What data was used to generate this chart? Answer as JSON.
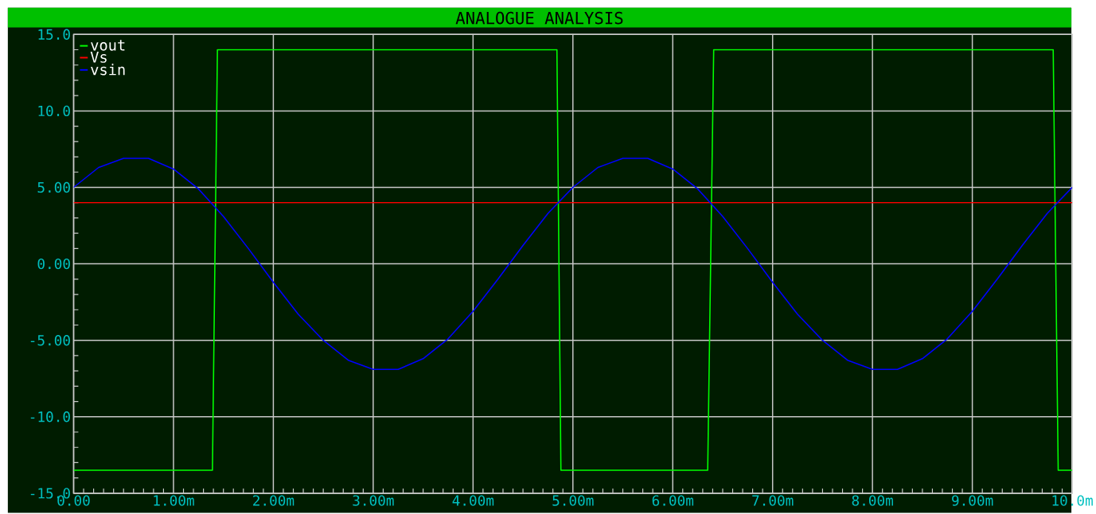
{
  "chart_data": {
    "type": "line",
    "title": "ANALOGUE ANALYSIS",
    "xlim": [
      0,
      10
    ],
    "ylim": [
      -15,
      15
    ],
    "xticks": [
      {
        "value": 0,
        "label": "0.00"
      },
      {
        "value": 1,
        "label": "1.00m"
      },
      {
        "value": 2,
        "label": "2.00m"
      },
      {
        "value": 3,
        "label": "3.00m"
      },
      {
        "value": 4,
        "label": "4.00m"
      },
      {
        "value": 5,
        "label": "5.00m"
      },
      {
        "value": 6,
        "label": "6.00m"
      },
      {
        "value": 7,
        "label": "7.00m"
      },
      {
        "value": 8,
        "label": "8.00m"
      },
      {
        "value": 9,
        "label": "9.00m"
      },
      {
        "value": 10,
        "label": "10.0m"
      }
    ],
    "yticks": [
      {
        "value": -15,
        "label": "-15.0"
      },
      {
        "value": -10,
        "label": "-10.0"
      },
      {
        "value": -5,
        "label": "-5.00"
      },
      {
        "value": 0,
        "label": "0.00"
      },
      {
        "value": 5,
        "label": "5.00"
      },
      {
        "value": 10,
        "label": "10.0"
      },
      {
        "value": 15,
        "label": "15.0"
      }
    ],
    "grid": true,
    "legend": "top left",
    "marker": "none",
    "line_style": "solid",
    "series": [
      {
        "name": "vout",
        "color": "#00ff00",
        "x": [
          0,
          1.39,
          1.44,
          4.84,
          4.88,
          6.35,
          6.41,
          9.81,
          9.86,
          10
        ],
        "values": [
          -13.5,
          -13.5,
          14.0,
          14.0,
          -13.5,
          -13.5,
          14.0,
          14.0,
          -13.5,
          -13.5
        ]
      },
      {
        "name": "Vs",
        "color": "#ff0000",
        "x": [
          0,
          10
        ],
        "values": [
          4.0,
          4.0
        ]
      },
      {
        "name": "vsin",
        "color": "#0000ff",
        "x": [
          0,
          0.25,
          0.5,
          0.75,
          1,
          1.25,
          1.5,
          1.75,
          2,
          2.25,
          2.5,
          2.75,
          3,
          3.25,
          3.5,
          3.75,
          4,
          4.25,
          4.5,
          4.75,
          5,
          5.25,
          5.5,
          5.75,
          6,
          6.25,
          6.5,
          6.75,
          7,
          7.25,
          7.5,
          7.75,
          8,
          8.25,
          8.5,
          8.75,
          9,
          9.25,
          9.5,
          9.75,
          10
        ],
        "values": [
          5.0,
          6.3,
          6.9,
          6.9,
          6.2,
          4.9,
          3.1,
          1.0,
          -1.2,
          -3.3,
          -5.0,
          -6.3,
          -6.9,
          -6.9,
          -6.2,
          -4.9,
          -3.1,
          -1.0,
          1.2,
          3.3,
          5.0,
          6.3,
          6.9,
          6.9,
          6.2,
          4.9,
          3.1,
          1.0,
          -1.2,
          -3.3,
          -5.0,
          -6.3,
          -6.9,
          -6.9,
          -6.2,
          -4.9,
          -3.1,
          -1.0,
          1.2,
          3.3,
          5.0
        ]
      }
    ]
  }
}
